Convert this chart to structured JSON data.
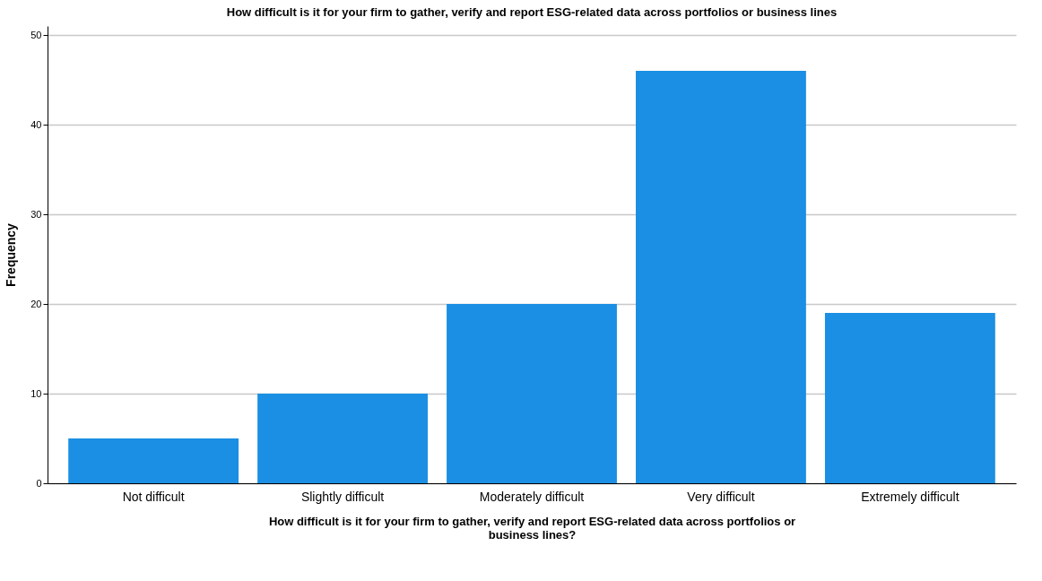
{
  "chart_data": {
    "type": "bar",
    "title": "How difficult is it for your firm to gather, verify and report ESG-related data across portfolios or business lines",
    "xlabel": "How difficult is it for your firm to gather, verify and report ESG-related data across portfolios or business lines?",
    "ylabel": "Frequency",
    "categories": [
      "Not difficult",
      "Slightly difficult",
      "Moderately difficult",
      "Very difficult",
      "Extremely difficult"
    ],
    "values": [
      5,
      10,
      20,
      46,
      19
    ],
    "color": "#1a8fe3",
    "ylim": [
      0,
      51
    ],
    "yticks": [
      0,
      10,
      20,
      30,
      40,
      50
    ],
    "grid": "y"
  }
}
